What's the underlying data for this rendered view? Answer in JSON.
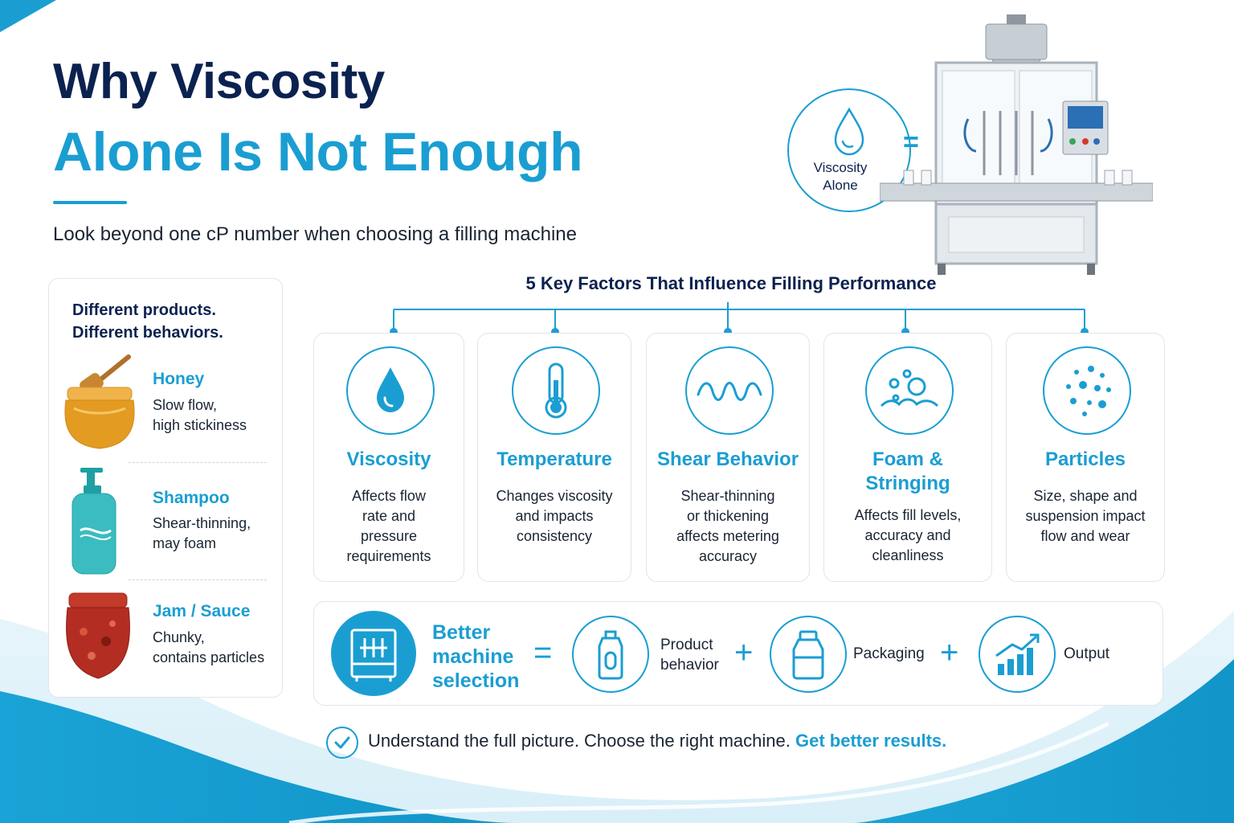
{
  "header": {
    "title_line1": "Why Viscosity",
    "title_line2": "Alone Is Not Enough",
    "subtitle": "Look beyond one cP number when choosing a filling machine"
  },
  "hero": {
    "viscosity_alone": "Viscosity Alone",
    "equals": "=",
    "machine_icon": "filling-machine-image"
  },
  "products": {
    "heading_line1": "Different products.",
    "heading_line2": "Different behaviors.",
    "items": [
      {
        "name": "Honey",
        "desc_line1": "Slow flow,",
        "desc_line2": "high stickiness",
        "icon": "honey-jar-icon"
      },
      {
        "name": "Shampoo",
        "desc_line1": "Shear-thinning,",
        "desc_line2": "may foam",
        "icon": "shampoo-bottle-icon"
      },
      {
        "name": "Jam / Sauce",
        "desc_line1": "Chunky,",
        "desc_line2": "contains particles",
        "icon": "jam-jar-icon"
      }
    ]
  },
  "factors": {
    "title": "5 Key Factors That Influence Filling Performance",
    "items": [
      {
        "name": "Viscosity",
        "desc": [
          "Affects flow",
          "rate and",
          "pressure",
          "requirements"
        ],
        "icon": "droplet-icon"
      },
      {
        "name": "Temperature",
        "desc": [
          "Changes viscosity",
          "and impacts",
          "consistency"
        ],
        "icon": "thermometer-icon"
      },
      {
        "name": "Shear Behavior",
        "desc": [
          "Shear-thinning",
          "or thickening",
          "affects metering",
          "accuracy"
        ],
        "icon": "wave-icon"
      },
      {
        "name_line1": "Foam &",
        "name_line2": "Stringing",
        "desc": [
          "Affects fill levels,",
          "accuracy and",
          "cleanliness"
        ],
        "icon": "bubbles-icon"
      },
      {
        "name": "Particles",
        "desc": [
          "Size, shape and",
          "suspension impact",
          "flow and wear"
        ],
        "icon": "particles-icon"
      }
    ]
  },
  "formula": {
    "result_line1": "Better",
    "result_line2": "machine",
    "result_line3": "selection",
    "equals": "=",
    "plus": "+",
    "terms": [
      {
        "label_line1": "Product",
        "label_line2": "behavior",
        "icon": "bottle-icon"
      },
      {
        "label": "Packaging",
        "icon": "container-icon"
      },
      {
        "label": "Output",
        "icon": "growth-chart-icon"
      }
    ]
  },
  "footer": {
    "text": "Understand the full picture. Choose the right machine.",
    "accent": "Get better results."
  },
  "colors": {
    "accent": "#1a9ed2",
    "navy": "#0b2250",
    "text": "#1a2433",
    "border": "#dfe6ee"
  }
}
